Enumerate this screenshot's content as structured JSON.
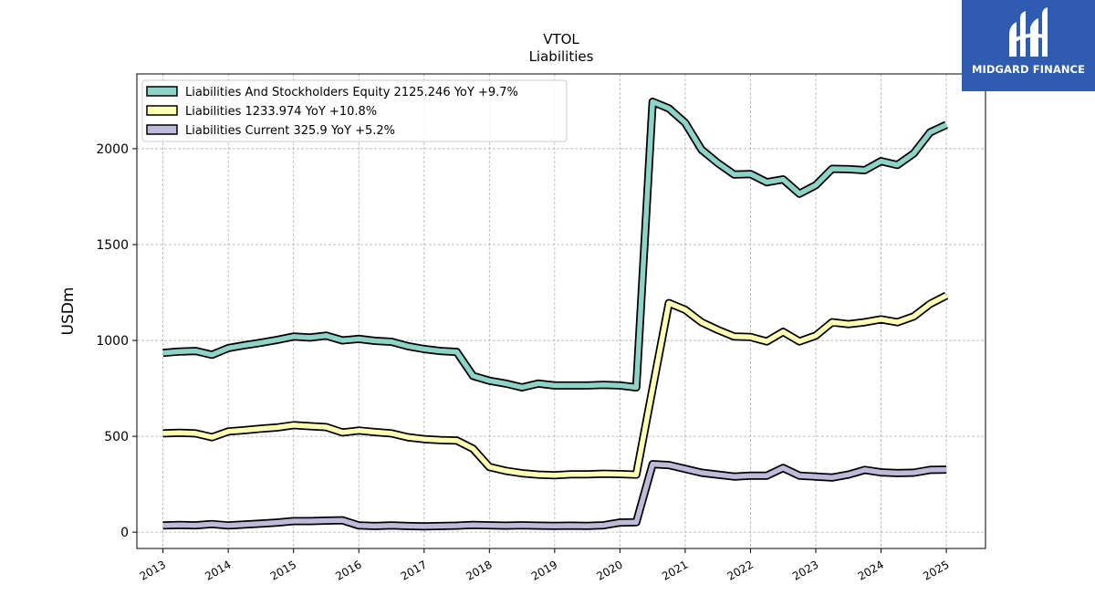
{
  "chart_data": {
    "type": "line",
    "title": "VTOL",
    "subtitle": "Liabilities",
    "xlabel": "",
    "ylabel": "USDm",
    "x_tick_labels": [
      "2013",
      "2014",
      "2015",
      "2016",
      "2017",
      "2018",
      "2019",
      "2020",
      "2021",
      "2022",
      "2023",
      "2024",
      "2025"
    ],
    "y_tick_labels": [
      "0",
      "500",
      "1000",
      "1500",
      "2000"
    ],
    "y_ticks": [
      0,
      500,
      1000,
      1500,
      2000
    ],
    "xlim": [
      2012.6,
      2025.6
    ],
    "ylim": [
      -85,
      2390
    ],
    "grid": true,
    "legend_position": "top-left",
    "x": [
      2013.0,
      2013.25,
      2013.5,
      2013.75,
      2014.0,
      2014.25,
      2014.5,
      2014.75,
      2015.0,
      2015.25,
      2015.5,
      2015.75,
      2016.0,
      2016.25,
      2016.5,
      2016.75,
      2017.0,
      2017.25,
      2017.5,
      2017.75,
      2018.0,
      2018.25,
      2018.5,
      2018.75,
      2019.0,
      2019.25,
      2019.5,
      2019.75,
      2020.0,
      2020.25,
      2020.5,
      2020.75,
      2021.0,
      2021.25,
      2021.5,
      2021.75,
      2022.0,
      2022.25,
      2022.5,
      2022.75,
      2023.0,
      2023.25,
      2023.5,
      2023.75,
      2024.0,
      2024.25,
      2024.5,
      2024.75,
      2025.0
    ],
    "series": [
      {
        "name": "Liabilities And Stockholders Equity",
        "legend_label": "Liabilities And Stockholders Equity  2125.246 YoY +9.7%",
        "color": "#8dd3c7",
        "values": [
          935,
          942,
          945,
          925,
          960,
          975,
          988,
          1003,
          1020,
          1015,
          1025,
          1000,
          1008,
          998,
          993,
          970,
          955,
          945,
          940,
          815,
          790,
          775,
          755,
          775,
          765,
          765,
          765,
          768,
          765,
          755,
          2245,
          2210,
          2135,
          1995,
          1925,
          1865,
          1868,
          1825,
          1840,
          1765,
          1810,
          1895,
          1893,
          1888,
          1935,
          1915,
          1975,
          2085,
          2125
        ]
      },
      {
        "name": "Liabilities",
        "legend_label": "Liabilities  1233.974 YoY +10.8%",
        "color": "#ffffb3",
        "values": [
          515,
          518,
          515,
          495,
          525,
          532,
          540,
          546,
          558,
          553,
          548,
          520,
          530,
          522,
          515,
          495,
          485,
          480,
          478,
          435,
          340,
          320,
          307,
          300,
          297,
          302,
          302,
          305,
          303,
          300,
          750,
          1195,
          1160,
          1095,
          1055,
          1020,
          1018,
          995,
          1045,
          995,
          1025,
          1095,
          1085,
          1095,
          1110,
          1095,
          1125,
          1190,
          1234
        ]
      },
      {
        "name": "Liabilities Current",
        "legend_label": "Liabilities Current  325.9 YoY +5.2%",
        "color": "#bebada",
        "values": [
          35,
          38,
          36,
          42,
          35,
          40,
          45,
          50,
          58,
          58,
          60,
          62,
          35,
          32,
          35,
          32,
          30,
          32,
          34,
          38,
          36,
          34,
          36,
          34,
          33,
          34,
          33,
          36,
          50,
          52,
          355,
          350,
          330,
          310,
          300,
          290,
          295,
          295,
          335,
          295,
          290,
          285,
          300,
          325,
          312,
          308,
          310,
          325,
          326
        ]
      }
    ]
  },
  "logo": {
    "text": "MIDGARD FINANCE"
  }
}
